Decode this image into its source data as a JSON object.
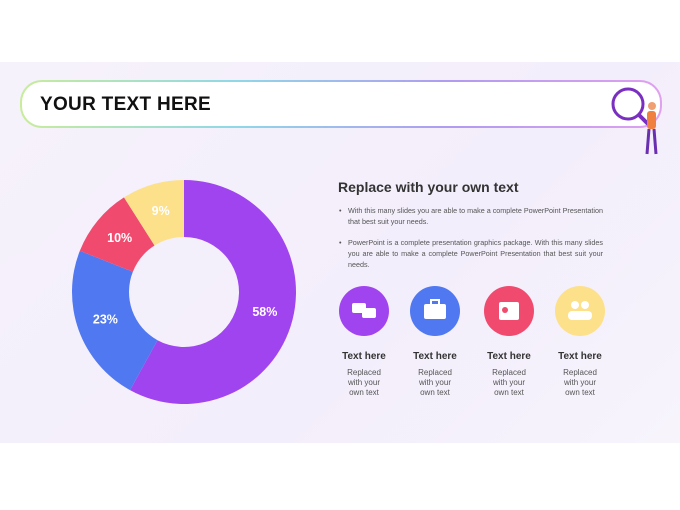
{
  "header": {
    "title": "YOUR TEXT HERE"
  },
  "content": {
    "heading": "Replace with your own text",
    "bullets": [
      "With this many slides you are able to make a complete PowerPoint Presentation that best suit your needs.",
      "PowerPoint is a complete presentation graphics package. With this many slides you are able to make a complete PowerPoint Presentation that best suit your needs."
    ],
    "items": [
      {
        "title": "Text here",
        "text": "Replaced with your own text"
      },
      {
        "title": "Text here",
        "text": "Replaced with your own text"
      },
      {
        "title": "Text here",
        "text": "Replaced with your own text"
      },
      {
        "title": "Text here",
        "text": "Replaced with your own text"
      }
    ]
  },
  "chart_data": {
    "type": "donut",
    "values": [
      58,
      23,
      10,
      9
    ],
    "value_labels": [
      "58%",
      "23%",
      "10%",
      "9%"
    ],
    "colors": [
      "#a044f0",
      "#5078f0",
      "#f04a6e",
      "#fde08a"
    ]
  }
}
